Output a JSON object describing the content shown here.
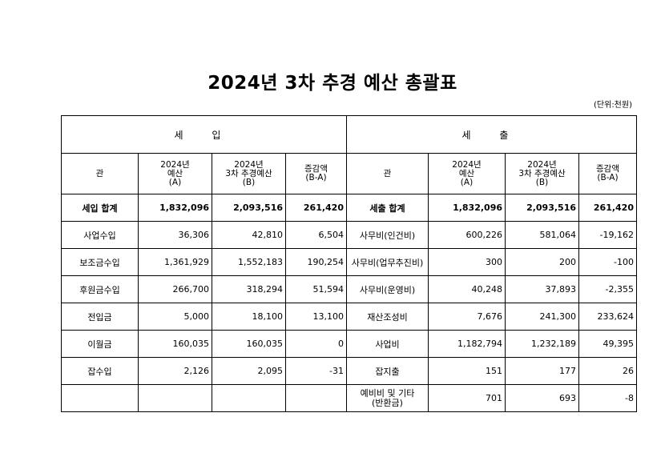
{
  "title": "2024년 3차 추경 예산 총괄표",
  "unit": "(단위:천원)",
  "sections": {
    "income": "세 입",
    "expense": "세 출"
  },
  "headers": {
    "gwan": "관",
    "budget_a_l1": "2024년",
    "budget_a_l2": "예산",
    "budget_a_l3": "(A)",
    "budget_b_l1": "2024년",
    "budget_b_l2": "3차 추경예산",
    "budget_b_l3": "(B)",
    "diff_l1": "증감액",
    "diff_l2": "(B-A)"
  },
  "rows": [
    {
      "in_name": "세입 합계",
      "in_a": "1,832,096",
      "in_b": "2,093,516",
      "in_diff": "261,420",
      "ex_name": "세출 합계",
      "ex_a": "1,832,096",
      "ex_b": "2,093,516",
      "ex_diff": "261,420"
    },
    {
      "in_name": "사업수입",
      "in_a": "36,306",
      "in_b": "42,810",
      "in_diff": "6,504",
      "ex_name": "사무비(인건비)",
      "ex_a": "600,226",
      "ex_b": "581,064",
      "ex_diff": "-19,162"
    },
    {
      "in_name": "보조금수입",
      "in_a": "1,361,929",
      "in_b": "1,552,183",
      "in_diff": "190,254",
      "ex_name": "사무비(업무추진비)",
      "ex_a": "300",
      "ex_b": "200",
      "ex_diff": "-100"
    },
    {
      "in_name": "후원금수입",
      "in_a": "266,700",
      "in_b": "318,294",
      "in_diff": "51,594",
      "ex_name": "사무비(운영비)",
      "ex_a": "40,248",
      "ex_b": "37,893",
      "ex_diff": "-2,355"
    },
    {
      "in_name": "전입금",
      "in_a": "5,000",
      "in_b": "18,100",
      "in_diff": "13,100",
      "ex_name": "재산조성비",
      "ex_a": "7,676",
      "ex_b": "241,300",
      "ex_diff": "233,624"
    },
    {
      "in_name": "이월금",
      "in_a": "160,035",
      "in_b": "160,035",
      "in_diff": "0",
      "ex_name": "사업비",
      "ex_a": "1,182,794",
      "ex_b": "1,232,189",
      "ex_diff": "49,395"
    },
    {
      "in_name": "잡수입",
      "in_a": "2,126",
      "in_b": "2,095",
      "in_diff": "-31",
      "ex_name": "잡지출",
      "ex_a": "151",
      "ex_b": "177",
      "ex_diff": "26"
    }
  ],
  "last_row": {
    "ex_name_l1": "예비비 및 기타",
    "ex_name_l2": "(반환금)",
    "ex_a": "701",
    "ex_b": "693",
    "ex_diff": "-8"
  }
}
